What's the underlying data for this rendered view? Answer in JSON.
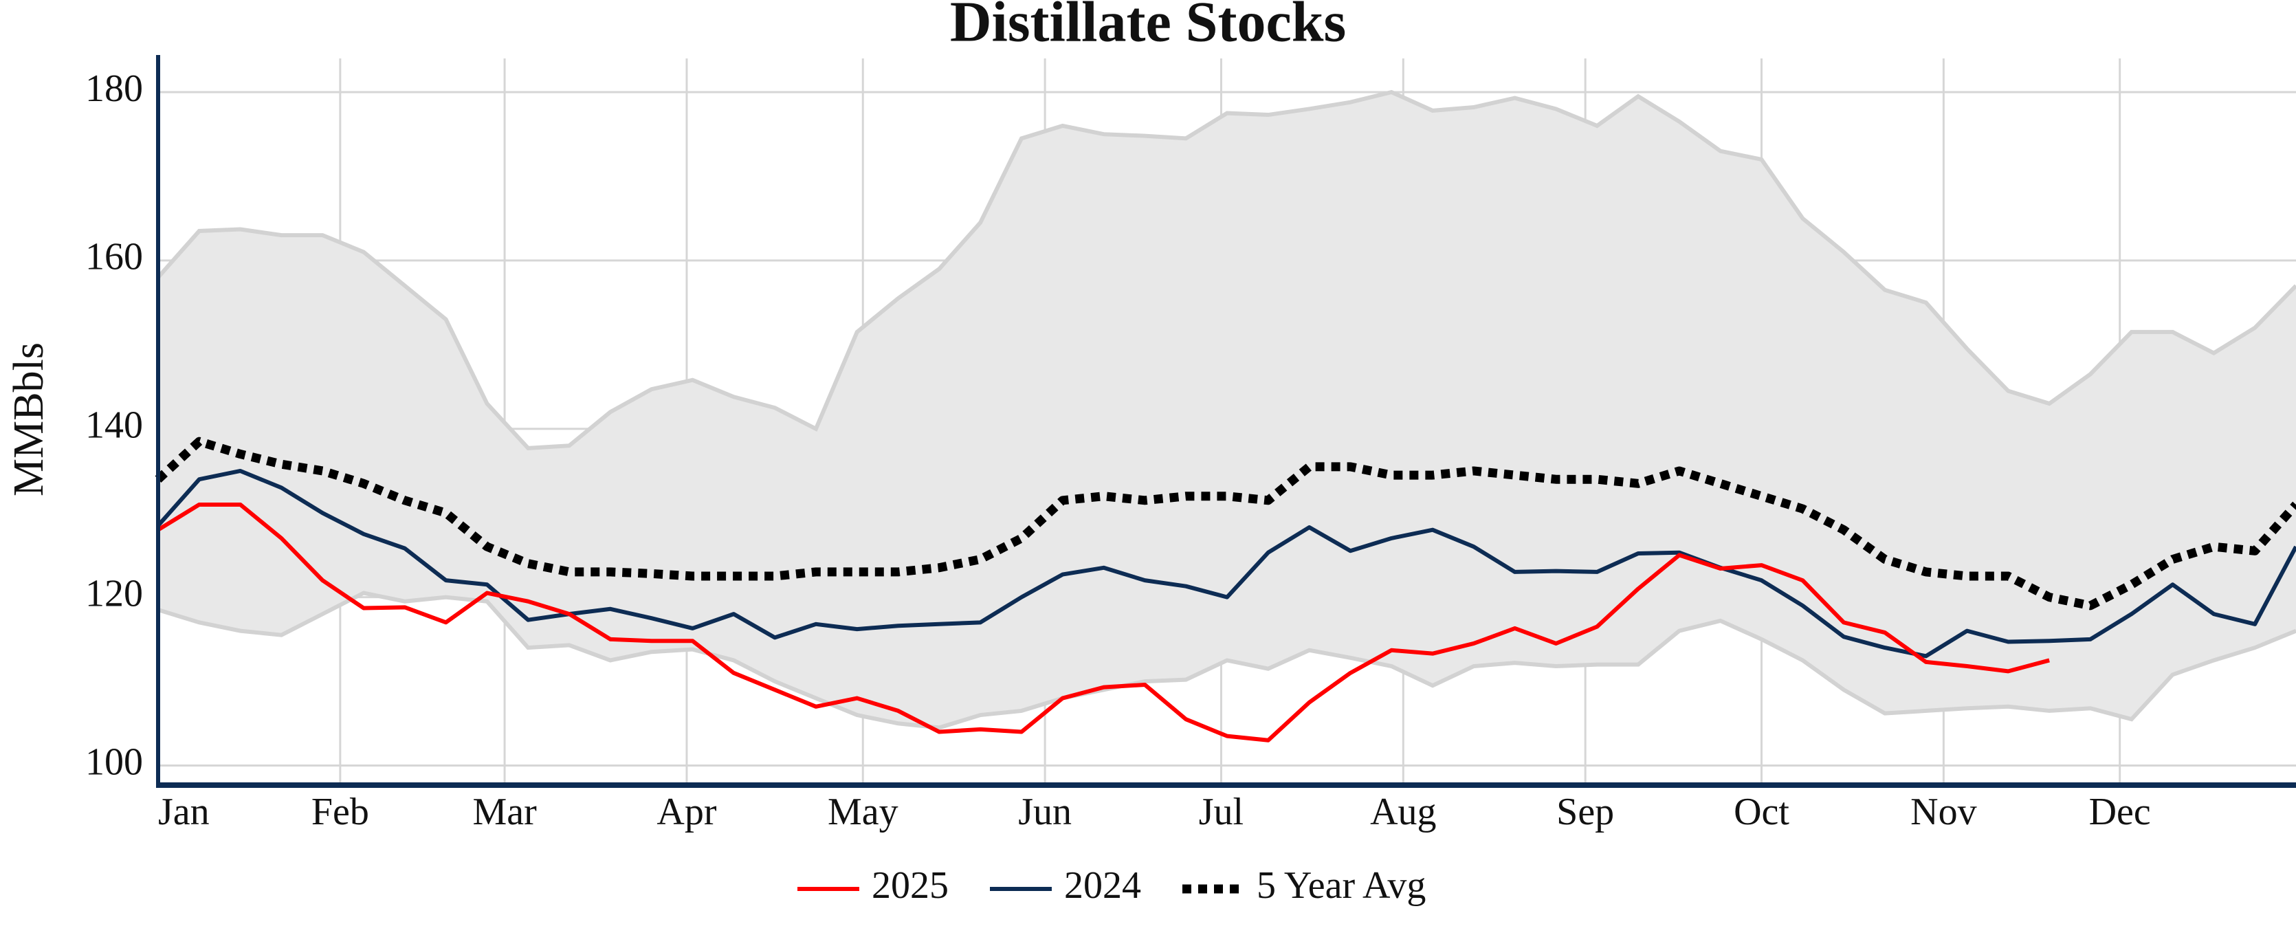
{
  "chart_data": {
    "type": "line",
    "title": "Distillate Stocks",
    "y_label": "MMBbls",
    "x": [
      1,
      8,
      15,
      22,
      29,
      36,
      43,
      50,
      57,
      64,
      71,
      78,
      85,
      92,
      99,
      106,
      113,
      120,
      127,
      134,
      141,
      148,
      155,
      162,
      169,
      176,
      183,
      190,
      197,
      204,
      211,
      218,
      225,
      232,
      239,
      246,
      253,
      260,
      267,
      274,
      281,
      288,
      295,
      302,
      309,
      316,
      323,
      330,
      337,
      344,
      351,
      358,
      365
    ],
    "xlim": [
      1,
      365
    ],
    "xticks": [
      {
        "value": 1,
        "label": "Jan"
      },
      {
        "value": 32,
        "label": "Feb"
      },
      {
        "value": 60,
        "label": "Mar"
      },
      {
        "value": 91,
        "label": "Apr"
      },
      {
        "value": 121,
        "label": "May"
      },
      {
        "value": 152,
        "label": "Jun"
      },
      {
        "value": 182,
        "label": "Jul"
      },
      {
        "value": 213,
        "label": "Aug"
      },
      {
        "value": 244,
        "label": "Sep"
      },
      {
        "value": 274,
        "label": "Oct"
      },
      {
        "value": 305,
        "label": "Nov"
      },
      {
        "value": 335,
        "label": "Dec"
      }
    ],
    "ylim": [
      98,
      184
    ],
    "yticks": [
      100,
      120,
      140,
      160,
      180
    ],
    "grid": true,
    "range": {
      "color": "#e8e8e8",
      "max": [
        158,
        163.5,
        163.7,
        163,
        163,
        161,
        157,
        153,
        143,
        137.7,
        138,
        142,
        144.7,
        145.8,
        143.8,
        142.5,
        140,
        151.5,
        155.5,
        159,
        164.5,
        174.5,
        176,
        175,
        174.8,
        174.5,
        177.5,
        177.3,
        178,
        178.8,
        180,
        177.8,
        178.2,
        179.3,
        178,
        176,
        179.5,
        176.5,
        173,
        172,
        165,
        161,
        156.5,
        155,
        149.5,
        144.5,
        143,
        146.5,
        151.5,
        151.5,
        149,
        152,
        157
      ],
      "min": [
        118.5,
        117,
        116,
        115.5,
        118,
        120.5,
        119.5,
        120,
        119.5,
        114,
        114.3,
        112.5,
        113.5,
        113.8,
        112.5,
        110,
        108,
        106,
        105,
        104.5,
        106,
        106.5,
        108,
        109,
        110,
        110.2,
        112.5,
        111.5,
        113.7,
        112.8,
        111.8,
        109.5,
        111.8,
        112.2,
        111.8,
        112,
        112,
        116,
        117.2,
        115,
        112.5,
        109,
        106.2,
        106.5,
        106.8,
        107,
        106.5,
        106.8,
        105.5,
        110.8,
        112.5,
        114,
        116
      ]
    },
    "series": [
      {
        "name": "2025",
        "color": "#ff0000",
        "dash": false,
        "values": [
          128,
          131,
          131,
          127,
          122,
          118.7,
          118.8,
          117,
          120.5,
          119.5,
          118,
          115,
          114.8,
          114.8,
          111,
          109,
          107,
          108,
          106.5,
          104,
          104.3,
          104,
          108,
          109.3,
          109.6,
          105.5,
          103.5,
          103,
          107.5,
          111,
          113.7,
          113.3,
          114.5,
          116.3,
          114.5,
          116.5,
          121,
          125,
          123.4,
          123.8,
          122,
          117,
          115.8,
          112.3,
          111.8,
          111.2,
          112.5,
          null,
          null,
          null,
          null,
          null,
          null
        ]
      },
      {
        "name": "2024",
        "color": "#0d2c54",
        "dash": false,
        "values": [
          128.5,
          134,
          135,
          133,
          130,
          127.5,
          125.8,
          122,
          121.5,
          117.3,
          118,
          118.6,
          117.5,
          116.3,
          118,
          115.2,
          116.8,
          116.2,
          116.6,
          116.8,
          117,
          120,
          122.7,
          123.5,
          122,
          121.3,
          120,
          125.3,
          128.3,
          125.5,
          127,
          128,
          126,
          123,
          123.1,
          123,
          125.2,
          125.3,
          123.5,
          122,
          119,
          115.3,
          114,
          113,
          116,
          114.7,
          114.8,
          115,
          118,
          121.5,
          118,
          116.8,
          126
        ]
      },
      {
        "name": "5 Year Avg",
        "color": "#000000",
        "dash": true,
        "values": [
          134,
          138.5,
          137,
          135.8,
          135,
          133.5,
          131.5,
          130,
          126,
          124,
          123,
          123,
          122.8,
          122.5,
          122.5,
          122.5,
          123,
          123,
          123,
          123.5,
          124.5,
          127,
          131.5,
          132,
          131.5,
          132,
          132,
          131.5,
          135.5,
          135.5,
          134.5,
          134.5,
          135,
          134.5,
          134,
          134,
          133.5,
          135,
          133.5,
          132,
          130.5,
          128,
          124.5,
          123,
          122.5,
          122.5,
          120,
          119,
          121.5,
          124.5,
          126,
          125.5,
          131
        ]
      }
    ]
  }
}
